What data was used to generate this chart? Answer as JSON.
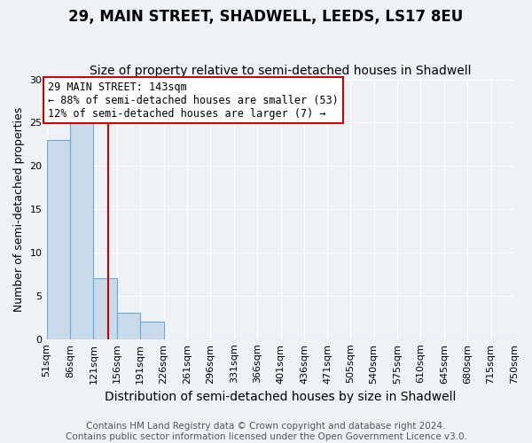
{
  "title": "29, MAIN STREET, SHADWELL, LEEDS, LS17 8EU",
  "subtitle": "Size of property relative to semi-detached houses in Shadwell",
  "xlabel": "Distribution of semi-detached houses by size in Shadwell",
  "ylabel": "Number of semi-detached properties",
  "bin_edges": [
    51,
    86,
    121,
    156,
    191,
    226,
    261,
    296,
    331,
    366,
    401,
    436,
    471,
    505,
    540,
    575,
    610,
    645,
    680,
    715,
    750
  ],
  "bar_heights": [
    23,
    25,
    7,
    3,
    2,
    0,
    0,
    0,
    0,
    0,
    0,
    0,
    0,
    0,
    0,
    0,
    0,
    0,
    0,
    0
  ],
  "bar_color": "#c9daea",
  "bar_edge_color": "#6aaad4",
  "property_size": 143,
  "red_line_color": "#cc0000",
  "annotation_line1": "29 MAIN STREET: 143sqm",
  "annotation_line2": "← 88% of semi-detached houses are smaller (53)",
  "annotation_line3": "12% of semi-detached houses are larger (7) →",
  "annotation_box_color": "white",
  "annotation_box_edge_color": "#cc0000",
  "ylim": [
    0,
    30
  ],
  "yticks": [
    0,
    5,
    10,
    15,
    20,
    25,
    30
  ],
  "footer_text": "Contains HM Land Registry data © Crown copyright and database right 2024.\nContains public sector information licensed under the Open Government Licence v3.0.",
  "title_fontsize": 12,
  "subtitle_fontsize": 10,
  "xlabel_fontsize": 10,
  "ylabel_fontsize": 9,
  "tick_fontsize": 8,
  "annot_fontsize": 8.5,
  "footer_fontsize": 7.5,
  "background_color": "#eef2f7"
}
